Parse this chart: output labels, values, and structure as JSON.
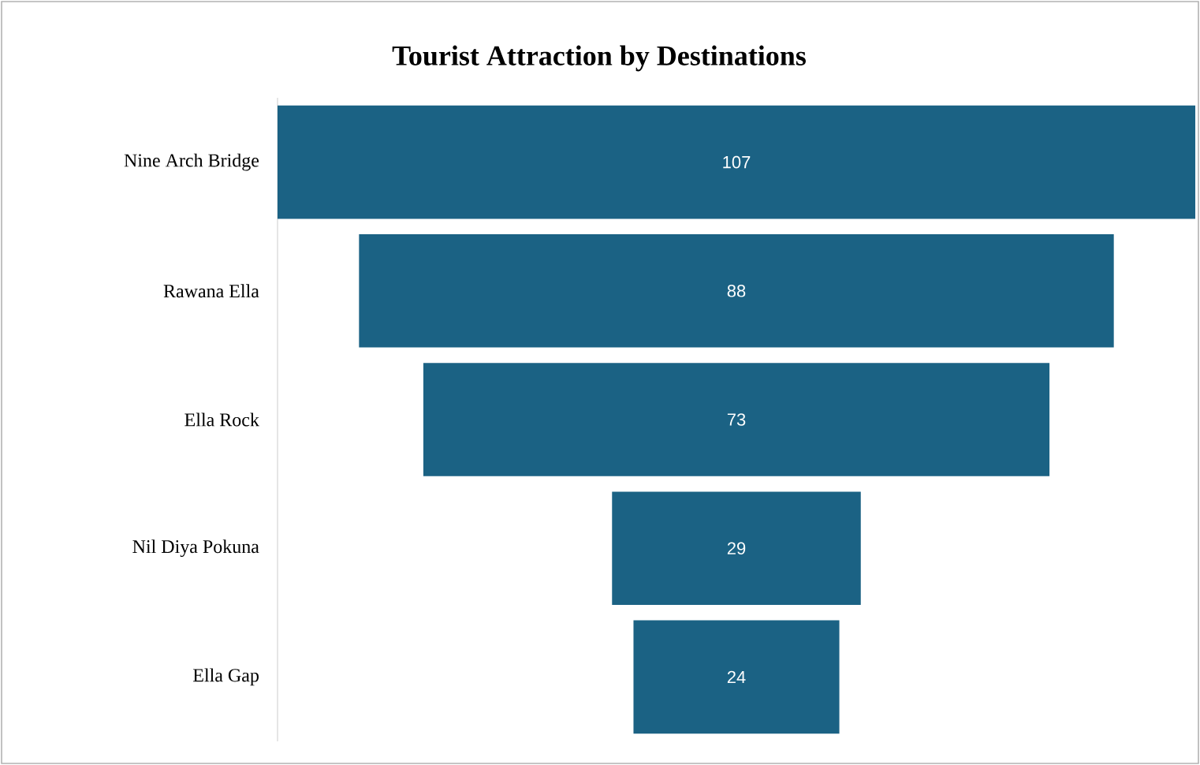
{
  "chart_data": {
    "type": "other",
    "title": "Tourist Attraction by Destinations",
    "categories": [
      "Nine Arch Bridge",
      "Rawana Ella",
      "Ella Rock",
      "Nil Diya Pokuna",
      "Ella Gap"
    ],
    "values": [
      107,
      88,
      73,
      29,
      24
    ],
    "color": "#1b6284",
    "data_labels": true
  }
}
